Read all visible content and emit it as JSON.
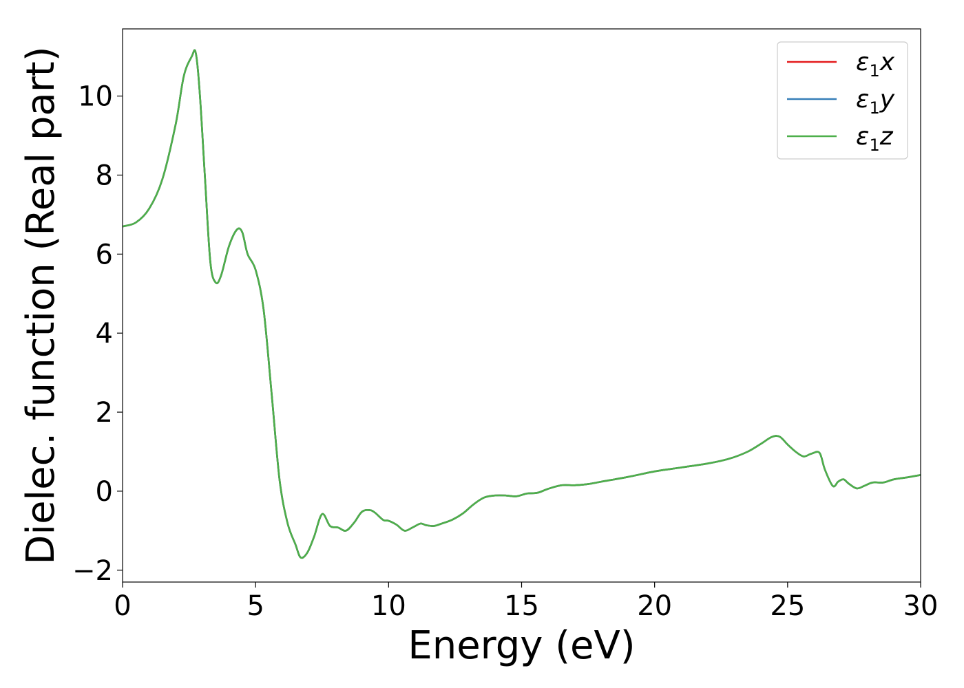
{
  "chart_data": {
    "type": "line",
    "xlabel": "Energy (eV)",
    "ylabel": "Dielec. function (Real part)",
    "xlim": [
      0,
      30
    ],
    "ylim": [
      -2.3,
      11.7
    ],
    "x_ticks": [
      "0",
      "5",
      "10",
      "15",
      "20",
      "25",
      "30"
    ],
    "x_tick_values": [
      0,
      5,
      10,
      15,
      20,
      25,
      30
    ],
    "y_ticks": [
      "−2",
      "0",
      "2",
      "4",
      "6",
      "8",
      "10"
    ],
    "y_tick_values": [
      -2,
      0,
      2,
      4,
      6,
      8,
      10
    ],
    "grid": false,
    "legend_position": "top-right",
    "series": [
      {
        "name": "ε1x",
        "legend_base": "ε",
        "legend_sub": "1",
        "legend_tail": "x",
        "color": "#e41a1c",
        "x": [
          0,
          0.5,
          1.0,
          1.5,
          2.0,
          2.3,
          2.6,
          2.75,
          2.9,
          3.1,
          3.3,
          3.5,
          3.7,
          4.0,
          4.3,
          4.5,
          4.7,
          5.0,
          5.3,
          5.6,
          5.9,
          6.2,
          6.5,
          6.7,
          6.95,
          7.2,
          7.5,
          7.8,
          8.1,
          8.4,
          8.7,
          9.0,
          9.3,
          9.5,
          9.8,
          10.0,
          10.3,
          10.6,
          10.9,
          11.2,
          11.4,
          11.7,
          12.0,
          12.4,
          12.8,
          13.2,
          13.6,
          14.0,
          14.4,
          14.8,
          15.2,
          15.6,
          16.0,
          16.5,
          17.0,
          17.5,
          18.0,
          19.0,
          20.0,
          21.0,
          22.0,
          22.8,
          23.5,
          24.0,
          24.4,
          24.7,
          25.0,
          25.3,
          25.6,
          25.9,
          26.2,
          26.4,
          26.7,
          26.9,
          27.1,
          27.3,
          27.6,
          27.9,
          28.2,
          28.6,
          29.0,
          29.5,
          30.0
        ],
        "y": [
          6.7,
          6.8,
          7.15,
          7.9,
          9.3,
          10.5,
          11.0,
          11.1,
          10.1,
          7.9,
          5.8,
          5.28,
          5.45,
          6.2,
          6.62,
          6.55,
          6.0,
          5.6,
          4.6,
          2.5,
          0.3,
          -0.8,
          -1.35,
          -1.68,
          -1.55,
          -1.15,
          -0.58,
          -0.88,
          -0.92,
          -1.0,
          -0.8,
          -0.52,
          -0.48,
          -0.55,
          -0.73,
          -0.75,
          -0.85,
          -1.0,
          -0.92,
          -0.82,
          -0.86,
          -0.88,
          -0.82,
          -0.72,
          -0.56,
          -0.33,
          -0.16,
          -0.11,
          -0.11,
          -0.13,
          -0.06,
          -0.04,
          0.06,
          0.15,
          0.15,
          0.18,
          0.24,
          0.36,
          0.5,
          0.6,
          0.7,
          0.82,
          1.0,
          1.2,
          1.37,
          1.38,
          1.18,
          1.0,
          0.88,
          0.95,
          0.97,
          0.55,
          0.13,
          0.24,
          0.3,
          0.19,
          0.07,
          0.14,
          0.22,
          0.22,
          0.3,
          0.35,
          0.41
        ]
      },
      {
        "name": "ε1y",
        "legend_base": "ε",
        "legend_sub": "1",
        "legend_tail": "y",
        "color": "#377eb8",
        "x": [
          0,
          0.5,
          1.0,
          1.5,
          2.0,
          2.3,
          2.6,
          2.75,
          2.9,
          3.1,
          3.3,
          3.5,
          3.7,
          4.0,
          4.3,
          4.5,
          4.7,
          5.0,
          5.3,
          5.6,
          5.9,
          6.2,
          6.5,
          6.7,
          6.95,
          7.2,
          7.5,
          7.8,
          8.1,
          8.4,
          8.7,
          9.0,
          9.3,
          9.5,
          9.8,
          10.0,
          10.3,
          10.6,
          10.9,
          11.2,
          11.4,
          11.7,
          12.0,
          12.4,
          12.8,
          13.2,
          13.6,
          14.0,
          14.4,
          14.8,
          15.2,
          15.6,
          16.0,
          16.5,
          17.0,
          17.5,
          18.0,
          19.0,
          20.0,
          21.0,
          22.0,
          22.8,
          23.5,
          24.0,
          24.4,
          24.7,
          25.0,
          25.3,
          25.6,
          25.9,
          26.2,
          26.4,
          26.7,
          26.9,
          27.1,
          27.3,
          27.6,
          27.9,
          28.2,
          28.6,
          29.0,
          29.5,
          30.0
        ],
        "y": [
          6.7,
          6.8,
          7.15,
          7.9,
          9.3,
          10.5,
          11.0,
          11.1,
          10.1,
          7.9,
          5.8,
          5.28,
          5.45,
          6.2,
          6.62,
          6.55,
          6.0,
          5.6,
          4.6,
          2.5,
          0.3,
          -0.8,
          -1.35,
          -1.68,
          -1.55,
          -1.15,
          -0.58,
          -0.88,
          -0.92,
          -1.0,
          -0.8,
          -0.52,
          -0.48,
          -0.55,
          -0.73,
          -0.75,
          -0.85,
          -1.0,
          -0.92,
          -0.82,
          -0.86,
          -0.88,
          -0.82,
          -0.72,
          -0.56,
          -0.33,
          -0.16,
          -0.11,
          -0.11,
          -0.13,
          -0.06,
          -0.04,
          0.06,
          0.15,
          0.15,
          0.18,
          0.24,
          0.36,
          0.5,
          0.6,
          0.7,
          0.82,
          1.0,
          1.2,
          1.37,
          1.38,
          1.18,
          1.0,
          0.88,
          0.95,
          0.97,
          0.55,
          0.13,
          0.24,
          0.3,
          0.19,
          0.07,
          0.14,
          0.22,
          0.22,
          0.3,
          0.35,
          0.41
        ]
      },
      {
        "name": "ε1z",
        "legend_base": "ε",
        "legend_sub": "1",
        "legend_tail": "z",
        "color": "#4daf4a",
        "x": [
          0,
          0.5,
          1.0,
          1.5,
          2.0,
          2.3,
          2.6,
          2.75,
          2.9,
          3.1,
          3.3,
          3.5,
          3.7,
          4.0,
          4.3,
          4.5,
          4.7,
          5.0,
          5.3,
          5.6,
          5.9,
          6.2,
          6.5,
          6.7,
          6.95,
          7.2,
          7.5,
          7.8,
          8.1,
          8.4,
          8.7,
          9.0,
          9.3,
          9.5,
          9.8,
          10.0,
          10.3,
          10.6,
          10.9,
          11.2,
          11.4,
          11.7,
          12.0,
          12.4,
          12.8,
          13.2,
          13.6,
          14.0,
          14.4,
          14.8,
          15.2,
          15.6,
          16.0,
          16.5,
          17.0,
          17.5,
          18.0,
          19.0,
          20.0,
          21.0,
          22.0,
          22.8,
          23.5,
          24.0,
          24.4,
          24.7,
          25.0,
          25.3,
          25.6,
          25.9,
          26.2,
          26.4,
          26.7,
          26.9,
          27.1,
          27.3,
          27.6,
          27.9,
          28.2,
          28.6,
          29.0,
          29.5,
          30.0
        ],
        "y": [
          6.7,
          6.8,
          7.15,
          7.9,
          9.3,
          10.5,
          11.0,
          11.1,
          10.1,
          7.9,
          5.8,
          5.28,
          5.45,
          6.2,
          6.62,
          6.55,
          6.0,
          5.6,
          4.6,
          2.5,
          0.3,
          -0.8,
          -1.35,
          -1.68,
          -1.55,
          -1.15,
          -0.58,
          -0.88,
          -0.92,
          -1.0,
          -0.8,
          -0.52,
          -0.48,
          -0.55,
          -0.73,
          -0.75,
          -0.85,
          -1.0,
          -0.92,
          -0.82,
          -0.86,
          -0.88,
          -0.82,
          -0.72,
          -0.56,
          -0.33,
          -0.16,
          -0.11,
          -0.11,
          -0.13,
          -0.06,
          -0.04,
          0.06,
          0.15,
          0.15,
          0.18,
          0.24,
          0.36,
          0.5,
          0.6,
          0.7,
          0.82,
          1.0,
          1.2,
          1.37,
          1.38,
          1.18,
          1.0,
          0.88,
          0.95,
          0.97,
          0.55,
          0.13,
          0.24,
          0.3,
          0.19,
          0.07,
          0.14,
          0.22,
          0.22,
          0.3,
          0.35,
          0.41
        ]
      }
    ]
  }
}
